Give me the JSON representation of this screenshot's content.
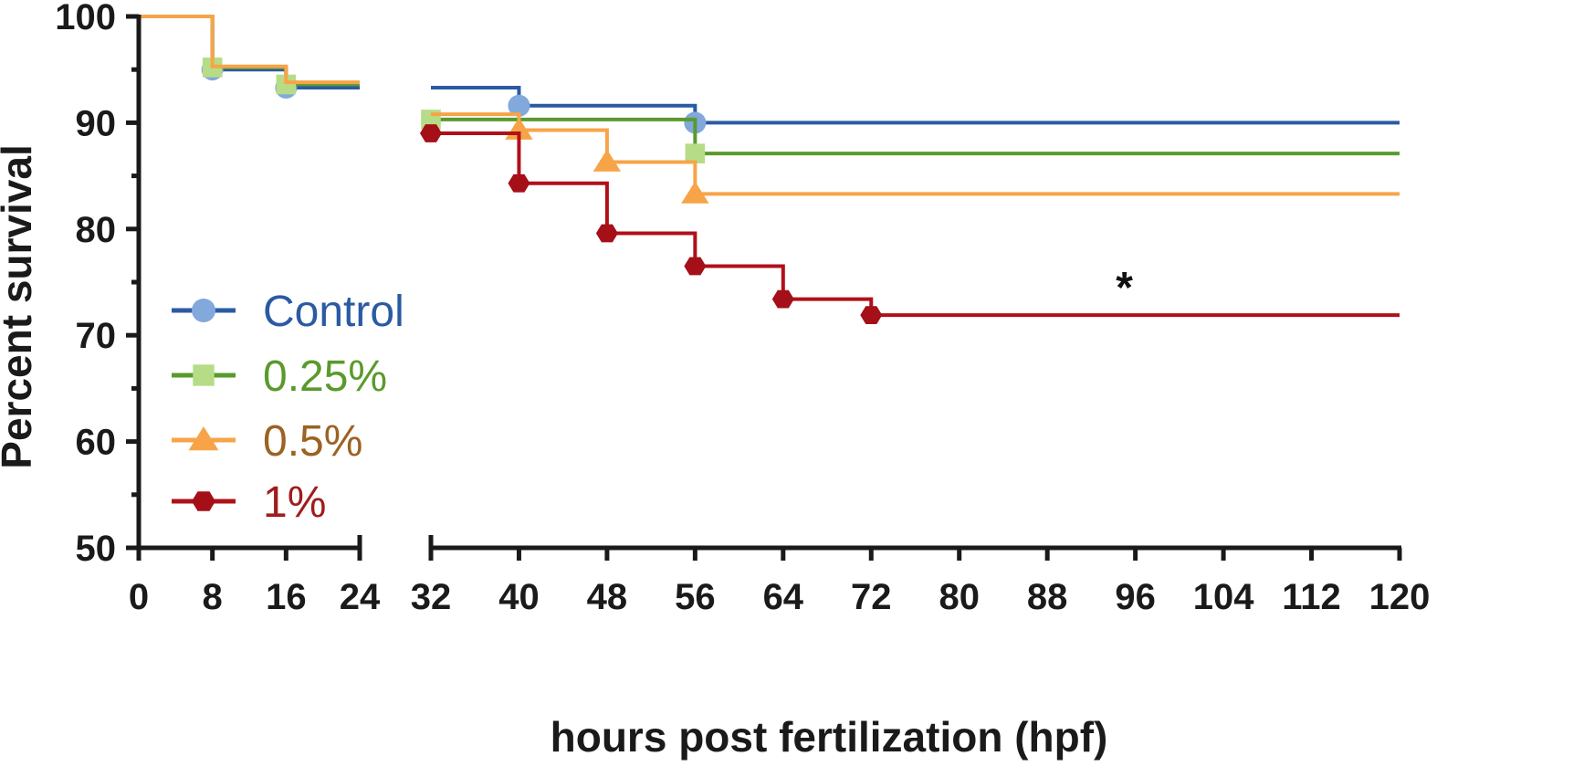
{
  "chart_data": {
    "type": "line",
    "title": "",
    "xlabel": "hours post fertilization (hpf)",
    "ylabel": "Percent survival",
    "ylim": [
      50,
      100
    ],
    "y_ticks": [
      50,
      60,
      70,
      80,
      90,
      100
    ],
    "x_ticks": [
      0,
      8,
      16,
      24,
      32,
      40,
      48,
      56,
      64,
      72,
      80,
      88,
      96,
      104,
      112,
      120
    ],
    "x_segments": [
      [
        0,
        24
      ],
      [
        32,
        120
      ]
    ],
    "grid": false,
    "legend_position": "left-middle",
    "annotation": {
      "text": "*",
      "x": 95,
      "y": 75
    },
    "series": [
      {
        "name": "Control",
        "line_color": "#2B5AA3",
        "marker_color": "#82A8DC",
        "text_color": "#2B5AA3",
        "marker": "circle",
        "steps": [
          [
            0,
            100
          ],
          [
            8,
            95
          ],
          [
            16,
            93.3
          ],
          [
            24,
            93.3
          ],
          [
            32,
            93.3
          ],
          [
            40,
            91.6
          ],
          [
            56,
            90
          ],
          [
            120,
            90
          ]
        ],
        "markers": [
          [
            8,
            95
          ],
          [
            16,
            93.3
          ],
          [
            40,
            91.6
          ],
          [
            56,
            90
          ]
        ]
      },
      {
        "name": "0.25%",
        "line_color": "#5A9A2C",
        "marker_color": "#B7DC87",
        "text_color": "#5A9A2C",
        "marker": "square",
        "steps": [
          [
            0,
            100
          ],
          [
            8,
            95.2
          ],
          [
            16,
            93.6
          ],
          [
            24,
            93.6
          ],
          [
            32,
            90.3
          ],
          [
            56,
            87.1
          ],
          [
            120,
            87.1
          ]
        ],
        "markers": [
          [
            8,
            95.2
          ],
          [
            16,
            93.6
          ],
          [
            32,
            90.3
          ],
          [
            56,
            87.1
          ]
        ]
      },
      {
        "name": "0.5%",
        "line_color": "#F7A448",
        "marker_color": "#F7A448",
        "text_color": "#9C6222",
        "marker": "triangle",
        "steps": [
          [
            0,
            100
          ],
          [
            8,
            95.3
          ],
          [
            16,
            93.8
          ],
          [
            24,
            93.8
          ],
          [
            32,
            90.8
          ],
          [
            40,
            89.3
          ],
          [
            48,
            86.3
          ],
          [
            56,
            83.3
          ],
          [
            120,
            83.3
          ]
        ],
        "markers": [
          [
            40,
            89.3
          ],
          [
            48,
            86.3
          ],
          [
            56,
            83.3
          ]
        ]
      },
      {
        "name": "1%",
        "line_color": "#B0101A",
        "marker_color": "#A50F18",
        "text_color": "#A01C1C",
        "marker": "hexagon",
        "steps": [
          [
            32,
            89
          ],
          [
            40,
            84.3
          ],
          [
            48,
            79.6
          ],
          [
            56,
            76.5
          ],
          [
            64,
            73.4
          ],
          [
            72,
            71.9
          ],
          [
            120,
            71.9
          ]
        ],
        "markers": [
          [
            32,
            89
          ],
          [
            40,
            84.3
          ],
          [
            48,
            79.6
          ],
          [
            56,
            76.5
          ],
          [
            64,
            73.4
          ],
          [
            72,
            71.9
          ]
        ]
      }
    ]
  }
}
